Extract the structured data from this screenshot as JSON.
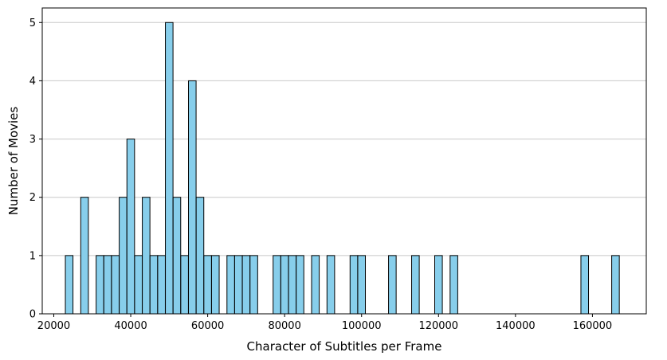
{
  "chart_data": {
    "type": "bar",
    "title": "",
    "xlabel": "Character of Subtitles per Frame",
    "ylabel": "Number of Movies",
    "xlim": [
      17000,
      174000
    ],
    "ylim": [
      0,
      5.25
    ],
    "xticks": [
      20000,
      40000,
      60000,
      80000,
      100000,
      120000,
      140000,
      160000
    ],
    "xtick_labels": [
      "20000",
      "40000",
      "60000",
      "80000",
      "100000",
      "120000",
      "140000",
      "160000"
    ],
    "yticks": [
      0,
      1,
      2,
      3,
      4,
      5
    ],
    "ytick_labels": [
      "0",
      "1",
      "2",
      "3",
      "4",
      "5"
    ],
    "grid": "y",
    "bar_color": "#87CEEB",
    "edge_color": "#000000",
    "bin_width": 1980,
    "bins": [
      {
        "x": 24000,
        "count": 1
      },
      {
        "x": 28000,
        "count": 2
      },
      {
        "x": 32000,
        "count": 1
      },
      {
        "x": 34000,
        "count": 1
      },
      {
        "x": 36000,
        "count": 1
      },
      {
        "x": 38000,
        "count": 2
      },
      {
        "x": 40000,
        "count": 3
      },
      {
        "x": 42000,
        "count": 1
      },
      {
        "x": 44000,
        "count": 2
      },
      {
        "x": 46000,
        "count": 1
      },
      {
        "x": 48000,
        "count": 1
      },
      {
        "x": 50000,
        "count": 5
      },
      {
        "x": 52000,
        "count": 2
      },
      {
        "x": 54000,
        "count": 1
      },
      {
        "x": 56000,
        "count": 4
      },
      {
        "x": 58000,
        "count": 2
      },
      {
        "x": 60000,
        "count": 1
      },
      {
        "x": 62000,
        "count": 1
      },
      {
        "x": 66000,
        "count": 1
      },
      {
        "x": 68000,
        "count": 1
      },
      {
        "x": 70000,
        "count": 1
      },
      {
        "x": 72000,
        "count": 1
      },
      {
        "x": 78000,
        "count": 1
      },
      {
        "x": 80000,
        "count": 1
      },
      {
        "x": 82000,
        "count": 1
      },
      {
        "x": 84000,
        "count": 1
      },
      {
        "x": 88000,
        "count": 1
      },
      {
        "x": 92000,
        "count": 1
      },
      {
        "x": 98000,
        "count": 1
      },
      {
        "x": 100000,
        "count": 1
      },
      {
        "x": 108000,
        "count": 1
      },
      {
        "x": 114000,
        "count": 1
      },
      {
        "x": 120000,
        "count": 1
      },
      {
        "x": 124000,
        "count": 1
      },
      {
        "x": 158000,
        "count": 1
      },
      {
        "x": 166000,
        "count": 1
      }
    ]
  }
}
